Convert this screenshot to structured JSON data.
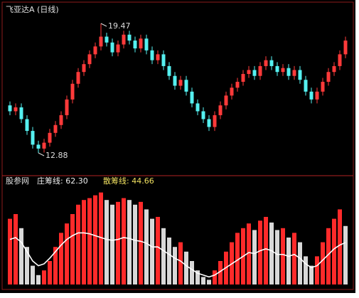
{
  "chart_data": [
    {
      "type": "candlestick",
      "title": "飞亚达A (日线)",
      "opens": [
        15.3,
        15.0,
        15.2,
        14.6,
        14.0,
        13.3,
        13.1,
        13.4,
        13.9,
        14.3,
        14.8,
        15.6,
        16.4,
        17.0,
        17.4,
        17.9,
        18.3,
        18.8,
        18.5,
        18.0,
        18.4,
        18.9,
        18.6,
        18.2,
        18.7,
        18.1,
        17.6,
        17.9,
        17.3,
        16.8,
        16.3,
        16.6,
        16.0,
        15.4,
        15.0,
        14.6,
        14.2,
        14.8,
        15.3,
        15.8,
        16.2,
        16.5,
        16.9,
        17.1,
        16.8,
        17.3,
        17.6,
        17.3,
        17.0,
        17.2,
        16.8,
        17.1,
        16.6,
        16.0,
        15.6,
        16.0,
        16.5,
        17.0,
        17.3,
        17.9
      ],
      "closes": [
        15.0,
        15.2,
        14.6,
        14.0,
        13.3,
        13.1,
        13.4,
        13.9,
        14.3,
        14.8,
        15.6,
        16.4,
        17.0,
        17.4,
        17.9,
        18.3,
        18.8,
        18.5,
        18.0,
        18.4,
        18.9,
        18.6,
        18.2,
        18.7,
        18.1,
        17.6,
        17.9,
        17.3,
        16.8,
        16.3,
        16.6,
        16.0,
        15.4,
        15.0,
        14.6,
        14.2,
        14.8,
        15.3,
        15.8,
        16.2,
        16.5,
        16.9,
        17.1,
        16.8,
        17.3,
        17.6,
        17.3,
        17.0,
        17.2,
        16.8,
        17.1,
        16.6,
        16.0,
        15.6,
        16.0,
        16.5,
        17.0,
        17.3,
        17.9,
        18.6
      ],
      "highs": [
        15.5,
        15.4,
        15.4,
        14.8,
        14.2,
        13.5,
        13.6,
        14.1,
        14.5,
        15.0,
        15.8,
        16.6,
        17.2,
        17.6,
        18.1,
        18.5,
        19.47,
        19.0,
        18.7,
        18.6,
        19.1,
        19.1,
        18.8,
        18.9,
        18.9,
        18.3,
        18.1,
        18.1,
        17.5,
        17.0,
        16.8,
        16.8,
        16.2,
        15.6,
        15.2,
        14.8,
        15.0,
        15.5,
        16.0,
        16.4,
        16.7,
        17.1,
        17.3,
        17.3,
        17.5,
        17.8,
        17.8,
        17.5,
        17.4,
        17.4,
        17.3,
        17.3,
        16.8,
        16.2,
        16.2,
        16.7,
        17.2,
        17.5,
        18.1,
        18.8
      ],
      "lows": [
        14.8,
        14.8,
        14.4,
        13.8,
        13.1,
        12.88,
        12.9,
        13.2,
        13.7,
        14.1,
        14.6,
        15.4,
        16.2,
        16.8,
        17.2,
        17.7,
        18.1,
        18.3,
        17.8,
        17.8,
        18.2,
        18.4,
        18.0,
        18.0,
        17.9,
        17.4,
        17.4,
        17.1,
        16.6,
        16.1,
        16.1,
        15.8,
        15.2,
        14.8,
        14.4,
        14.0,
        14.0,
        14.6,
        15.1,
        15.6,
        16.0,
        16.3,
        16.7,
        16.6,
        16.6,
        17.1,
        17.1,
        16.8,
        16.8,
        16.6,
        16.6,
        16.4,
        15.8,
        15.4,
        15.4,
        15.8,
        16.3,
        16.8,
        17.1,
        17.7
      ],
      "up_color": "#ff3a3a",
      "down_color": "#55f0f0",
      "annotations": {
        "high": "19.47",
        "low": "12.88"
      }
    },
    {
      "type": "combo",
      "title": "股参网",
      "legend_labels": [
        "庄筹线: 62.30",
        "散筹线: 44.66"
      ],
      "ylim": [
        0,
        100
      ],
      "series": [
        {
          "color": "#ff2a2a",
          "values": [
            70,
            75,
            60,
            40,
            20,
            10,
            15,
            25,
            40,
            55,
            65,
            75,
            85,
            90,
            92,
            95,
            98,
            90,
            85,
            88,
            92,
            90,
            85,
            88,
            80,
            70,
            72,
            60,
            50,
            40,
            45,
            35,
            25,
            15,
            8,
            5,
            15,
            25,
            35,
            45,
            55,
            60,
            65,
            58,
            68,
            72,
            66,
            58,
            60,
            50,
            55,
            45,
            30,
            20,
            30,
            45,
            60,
            70,
            80,
            62.3
          ]
        },
        {
          "color": "#ffffff",
          "values": [
            48,
            50,
            45,
            35,
            25,
            20,
            22,
            28,
            35,
            42,
            48,
            52,
            55,
            55,
            54,
            52,
            50,
            48,
            47,
            48,
            50,
            49,
            47,
            46,
            44,
            40,
            40,
            36,
            32,
            28,
            25,
            20,
            16,
            12,
            10,
            8,
            10,
            14,
            18,
            22,
            26,
            30,
            34,
            33,
            36,
            38,
            36,
            32,
            32,
            30,
            32,
            28,
            22,
            18,
            20,
            26,
            32,
            38,
            42,
            44.66
          ]
        }
      ]
    }
  ]
}
